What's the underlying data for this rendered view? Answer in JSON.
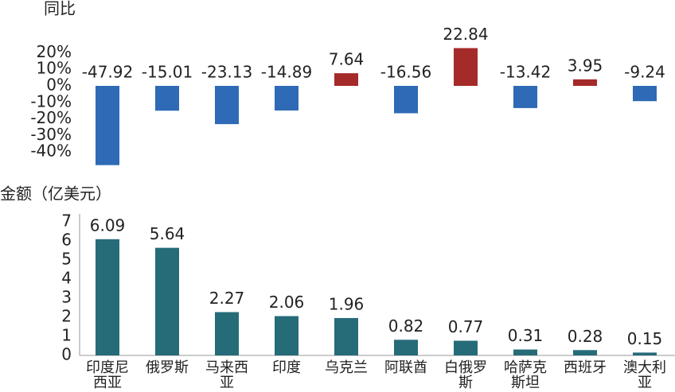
{
  "chart_data": [
    {
      "type": "bar",
      "title": "同比",
      "values": [
        -47.92,
        -15.01,
        -23.13,
        -14.89,
        7.64,
        -16.56,
        22.84,
        -13.42,
        3.95,
        -9.24
      ],
      "color_positive": "#a52a2a",
      "color_negative": "#2e6ab5",
      "ylim": [
        -50,
        25
      ],
      "yticks": [
        {
          "value": 20,
          "label": "20%"
        },
        {
          "value": 10,
          "label": "10%"
        },
        {
          "value": 0,
          "label": "0%"
        },
        {
          "value": -10,
          "label": "-10%"
        },
        {
          "value": -20,
          "label": "-20%"
        },
        {
          "value": -30,
          "label": "-30%"
        },
        {
          "value": -40,
          "label": "-40%"
        }
      ]
    },
    {
      "type": "bar",
      "title": "金额（亿美元）",
      "categories": [
        "印度尼西亚",
        "俄罗斯",
        "马来西亚",
        "印度",
        "乌克兰",
        "阿联酋",
        "白俄罗斯",
        "哈萨克斯坦",
        "西班牙",
        "澳大利亚"
      ],
      "values": [
        6.09,
        5.64,
        2.27,
        2.06,
        1.96,
        0.82,
        0.77,
        0.31,
        0.28,
        0.15
      ],
      "color": "#266b78",
      "ylim": [
        0,
        7
      ],
      "yticks": [
        0,
        1,
        2,
        3,
        4,
        5,
        6,
        7
      ]
    }
  ]
}
